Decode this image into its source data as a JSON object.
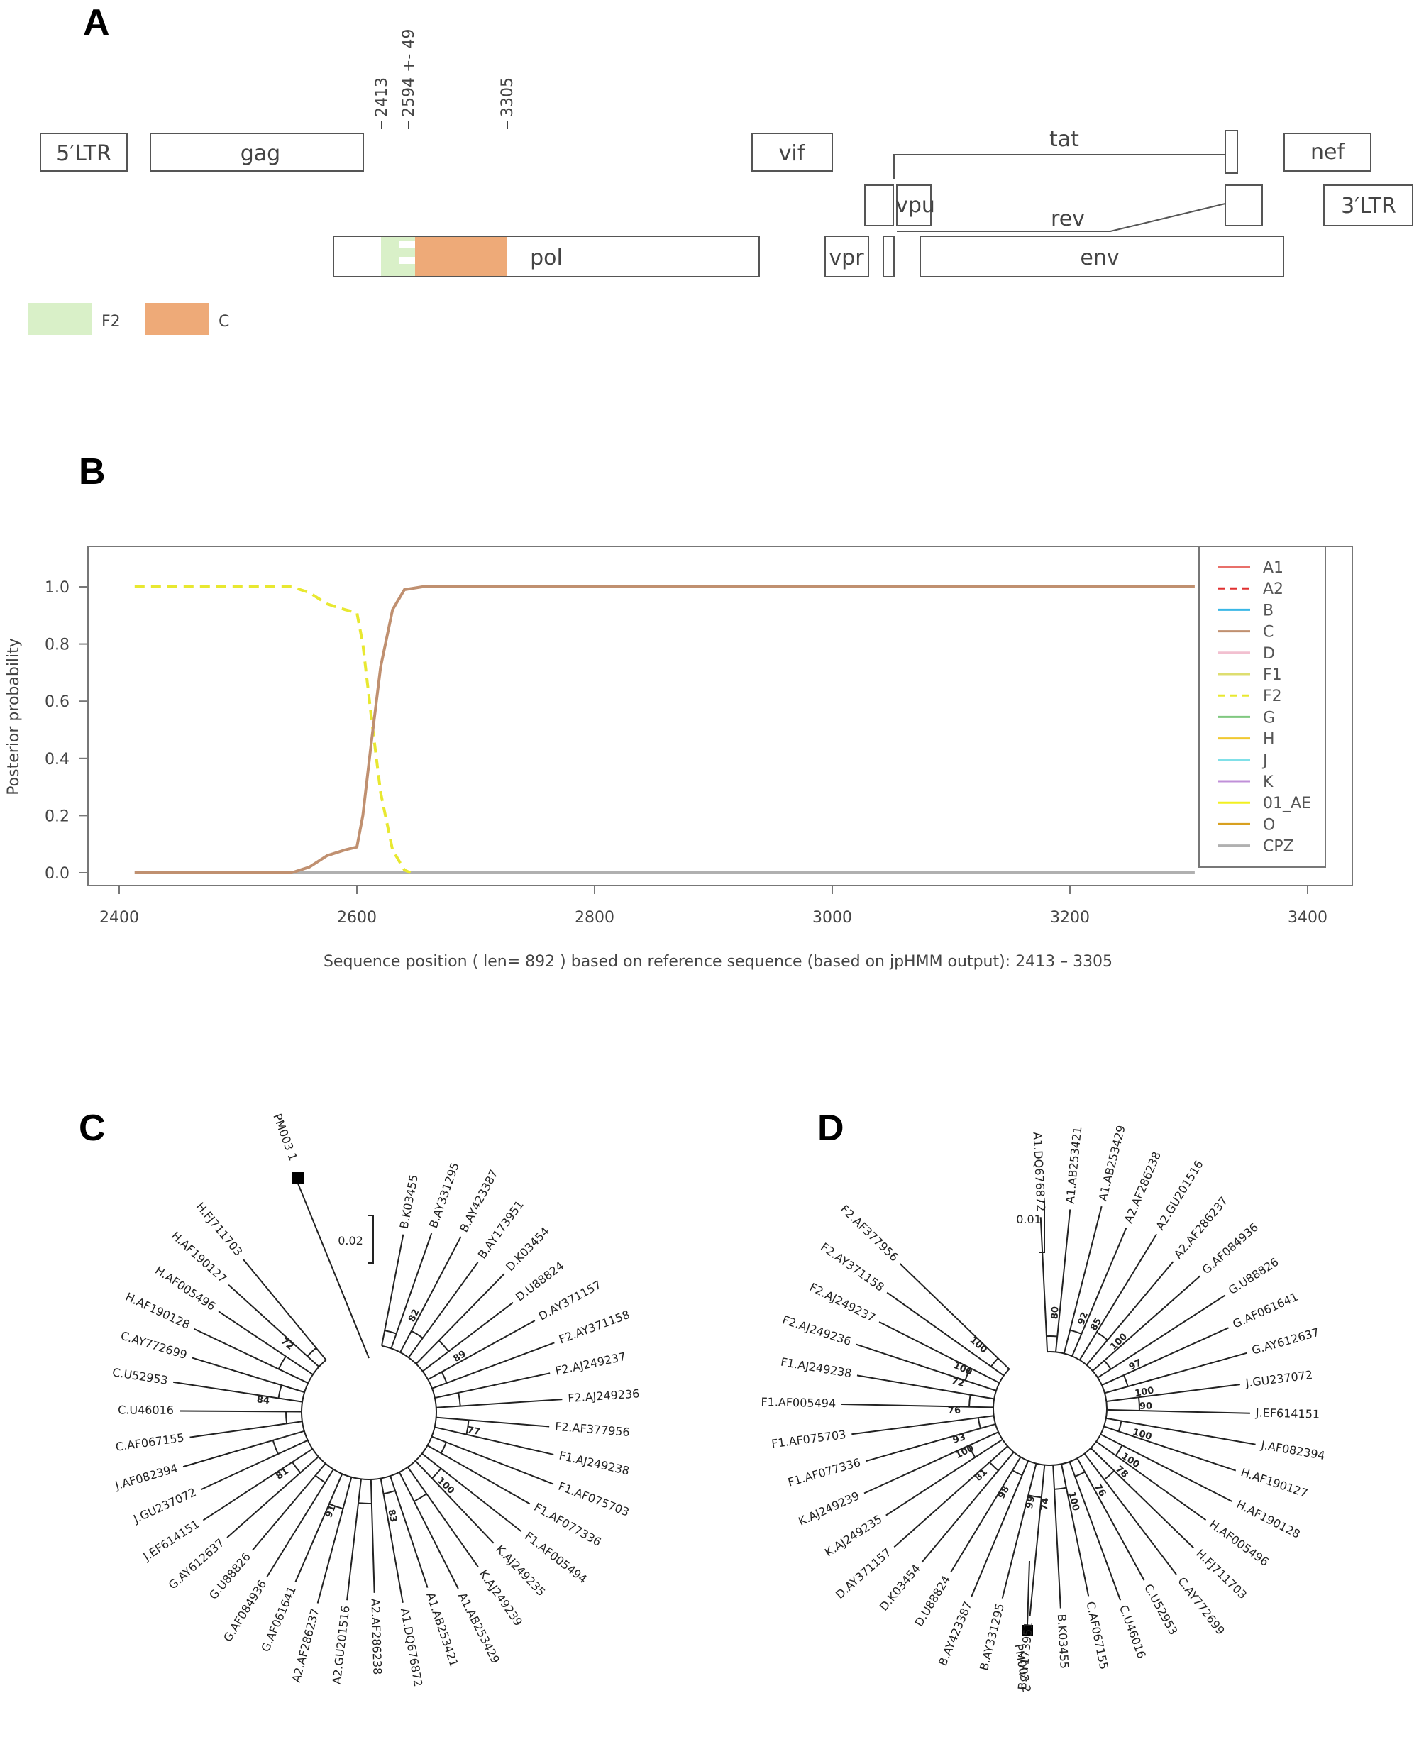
{
  "panels": {
    "a": "A",
    "b": "B",
    "c": "C",
    "d": "D"
  },
  "genome_map": {
    "genes": [
      {
        "id": "ltr5",
        "label": "5′LTR"
      },
      {
        "id": "gag",
        "label": "gag"
      },
      {
        "id": "vif",
        "label": "vif"
      },
      {
        "id": "tat",
        "label": "tat"
      },
      {
        "id": "nef",
        "label": "nef"
      },
      {
        "id": "vpu",
        "label": "vpu"
      },
      {
        "id": "rev",
        "label": "rev"
      },
      {
        "id": "ltr3",
        "label": "3′LTR"
      },
      {
        "id": "pol",
        "label": "pol"
      },
      {
        "id": "vpr",
        "label": "vpr"
      },
      {
        "id": "env",
        "label": "env"
      }
    ],
    "breakpoints": [
      "2413",
      "2594 +- 49",
      "3305"
    ],
    "segments": [
      {
        "subtype": "F2",
        "color": "#d9f0c8"
      },
      {
        "subtype": "C",
        "color": "#eeaa78"
      }
    ],
    "legend": [
      "F2",
      "C"
    ]
  },
  "chart_data": {
    "type": "line",
    "xlabel": "Sequence position ( len= 892 ) based on reference sequence (based on jpHMM output): 2413 – 3305",
    "ylabel": "Posterior probability",
    "xlim": [
      2400,
      3400
    ],
    "ylim": [
      0,
      1.0
    ],
    "xticks": [
      "2400",
      "2600",
      "2800",
      "3000",
      "3200",
      "3400"
    ],
    "yticks": [
      "0.0",
      "0.2",
      "0.4",
      "0.6",
      "0.8",
      "1.0"
    ],
    "legend_position": "right",
    "legend": [
      {
        "name": "A1",
        "color": "#e8706a",
        "dash": false
      },
      {
        "name": "A2",
        "color": "#e03030",
        "dash": true
      },
      {
        "name": "B",
        "color": "#39b7e6",
        "dash": false
      },
      {
        "name": "C",
        "color": "#c09070",
        "dash": false
      },
      {
        "name": "D",
        "color": "#f2c0d0",
        "dash": false
      },
      {
        "name": "F1",
        "color": "#dede70",
        "dash": false
      },
      {
        "name": "F2",
        "color": "#e8e830",
        "dash": true
      },
      {
        "name": "G",
        "color": "#80c880",
        "dash": false
      },
      {
        "name": "H",
        "color": "#f0c830",
        "dash": false
      },
      {
        "name": "J",
        "color": "#80e0e8",
        "dash": false
      },
      {
        "name": "K",
        "color": "#c090d8",
        "dash": false
      },
      {
        "name": "01_AE",
        "color": "#f2f020",
        "dash": false
      },
      {
        "name": "O",
        "color": "#d8a020",
        "dash": false
      },
      {
        "name": "CPZ",
        "color": "#b0b0b0",
        "dash": false
      }
    ],
    "series": [
      {
        "name": "C",
        "color": "#c09070",
        "dash": false,
        "points": [
          [
            2413,
            0
          ],
          [
            2545,
            0
          ],
          [
            2560,
            0.02
          ],
          [
            2575,
            0.06
          ],
          [
            2590,
            0.08
          ],
          [
            2600,
            0.09
          ],
          [
            2605,
            0.2
          ],
          [
            2612,
            0.45
          ],
          [
            2620,
            0.72
          ],
          [
            2630,
            0.92
          ],
          [
            2640,
            0.99
          ],
          [
            2655,
            1.0
          ],
          [
            3305,
            1.0
          ]
        ]
      },
      {
        "name": "F2",
        "color": "#e8e830",
        "dash": true,
        "points": [
          [
            2413,
            1.0
          ],
          [
            2545,
            1.0
          ],
          [
            2560,
            0.98
          ],
          [
            2575,
            0.94
          ],
          [
            2590,
            0.92
          ],
          [
            2600,
            0.91
          ],
          [
            2605,
            0.8
          ],
          [
            2612,
            0.55
          ],
          [
            2620,
            0.28
          ],
          [
            2630,
            0.08
          ],
          [
            2640,
            0.01
          ],
          [
            2645,
            0
          ]
        ]
      },
      {
        "name": "CPZ",
        "color": "#b0b0b0",
        "dash": false,
        "points": [
          [
            2413,
            0
          ],
          [
            3305,
            0
          ]
        ]
      }
    ]
  },
  "tree_c": {
    "scale": "0.02",
    "query": "PM003 1",
    "leaves": [
      "B.K03455",
      "B.AY331295",
      "B.AY423387",
      "B.AY173951",
      "D.K03454",
      "D.U88824",
      "D.AY371157",
      "F2.AY371158",
      "F2.AJ249237",
      "F2.AJ249236",
      "F2.AF377956",
      "F1.AJ249238",
      "F1.AF075703",
      "F1.AF077336",
      "F1.AF005494",
      "K.AJ249235",
      "K.AJ249239",
      "A1.AB253429",
      "A1.AB253421",
      "A1.DQ676872",
      "A2.AF286238",
      "A2.GU201516",
      "A2.AF286237",
      "G.AF061641",
      "G.AF084936",
      "G.U88826",
      "G.AY612637",
      "J.EF614151",
      "J.GU237072",
      "J.AF082394",
      "C.AF067155",
      "C.U46016",
      "C.U52953",
      "C.AY772699",
      "H.AF190128",
      "H.AF005496",
      "H.AF190127",
      "H.FJ711703"
    ],
    "bootstraps": [
      "82",
      "89",
      "77",
      "100",
      "83",
      "91",
      "81",
      "84",
      "72"
    ]
  },
  "tree_d": {
    "scale": "0.01",
    "query": "PM003 2",
    "leaves": [
      "A1.DQ676872",
      "A1.AB253421",
      "A1.AB253429",
      "A2.AF286238",
      "A2.GU201516",
      "A2.AF286237",
      "G.AF084936",
      "G.U88826",
      "G.AF061641",
      "G.AY612637",
      "J.GU237072",
      "J.EF614151",
      "J.AF082394",
      "H.AF190127",
      "H.AF190128",
      "H.AF005496",
      "H.FJ711703",
      "C.AY772699",
      "C.U52953",
      "C.U46016",
      "C.AF067155",
      "B.K03455",
      "B.AY173951",
      "B.AY331295",
      "B.AY423387",
      "D.U88824",
      "D.K03454",
      "D.AY371157",
      "K.AJ249235",
      "K.AJ249239",
      "F1.AF077336",
      "F1.AF075703",
      "F1.AF005494",
      "F1.AJ249238",
      "F2.AJ249236",
      "F2.AJ249237",
      "F2.AY371158",
      "F2.AF377956"
    ],
    "bootstraps": [
      "80",
      "92",
      "85",
      "100",
      "97",
      "100",
      "90",
      "100",
      "100",
      "78",
      "76",
      "100",
      "74",
      "99",
      "98",
      "81",
      "100",
      "93",
      "76",
      "72",
      "100",
      "100"
    ]
  }
}
